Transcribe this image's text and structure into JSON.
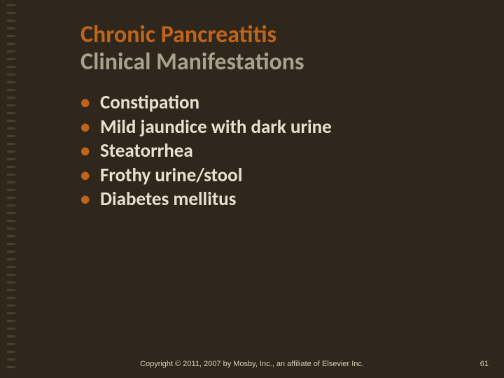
{
  "colors": {
    "background": "#2f271c",
    "title_accent": "#c0641c",
    "subtitle": "#aaa08e",
    "body_text": "#e7dfcf",
    "bullet": "#c0641c",
    "tick": "#4a3e2e",
    "footer": "#d8cfba",
    "pagenum": "#d8cfba"
  },
  "title": {
    "line1": "Chronic Pancreatitis",
    "line2": "Clinical Manifestations"
  },
  "bullets": [
    "Constipation",
    "Mild jaundice with dark urine",
    "Steatorrhea",
    "Frothy urine/stool",
    "Diabetes mellitus"
  ],
  "footer": "Copyright © 2011, 2007 by Mosby, Inc., an affiliate of Elsevier Inc.",
  "page_number": "61",
  "decor": {
    "tick_count": 48
  }
}
